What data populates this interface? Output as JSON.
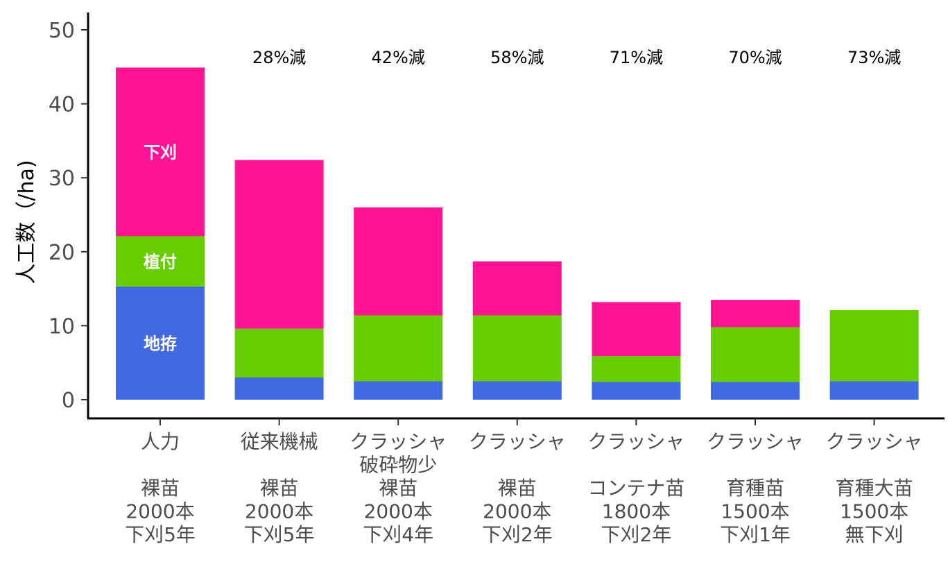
{
  "chart_data": {
    "type": "bar",
    "stacked": true,
    "ylabel": "人工数（/ha)",
    "ylim": [
      0,
      52
    ],
    "y_ticks": [
      0,
      10,
      20,
      30,
      40,
      50
    ],
    "grid": false,
    "categories": [
      {
        "lines": [
          "人力",
          "",
          "裸苗",
          "2000本",
          "下刈5年"
        ]
      },
      {
        "lines": [
          "従来機械",
          "",
          "裸苗",
          "2000本",
          "下刈5年"
        ]
      },
      {
        "lines": [
          "クラッシャ",
          "破砕物少",
          "裸苗",
          "2000本",
          "下刈4年"
        ]
      },
      {
        "lines": [
          "クラッシャ",
          "",
          "裸苗",
          "2000本",
          "下刈2年"
        ]
      },
      {
        "lines": [
          "クラッシャ",
          "",
          "コンテナ苗",
          "1800本",
          "下刈2年"
        ]
      },
      {
        "lines": [
          "クラッシャ",
          "",
          "育種苗",
          "1500本",
          "下刈1年"
        ]
      },
      {
        "lines": [
          "クラッシャ",
          "",
          "育種大苗",
          "1500本",
          "無下刈"
        ]
      }
    ],
    "series": [
      {
        "name": "地拵",
        "color": "#4169E1",
        "values": [
          15.3,
          3.0,
          2.5,
          2.5,
          2.4,
          2.4,
          2.5
        ]
      },
      {
        "name": "植付",
        "color": "#66CD00",
        "values": [
          6.8,
          6.6,
          8.9,
          8.9,
          3.5,
          7.4,
          9.6
        ]
      },
      {
        "name": "下刈",
        "color": "#FF1493",
        "values": [
          22.8,
          22.8,
          14.6,
          7.3,
          7.3,
          3.7,
          0
        ]
      }
    ],
    "segment_labels_bar_index": 0,
    "annotations": [
      "",
      "28%減",
      "42%減",
      "58%減",
      "71%減",
      "70%減",
      "73%減"
    ]
  }
}
